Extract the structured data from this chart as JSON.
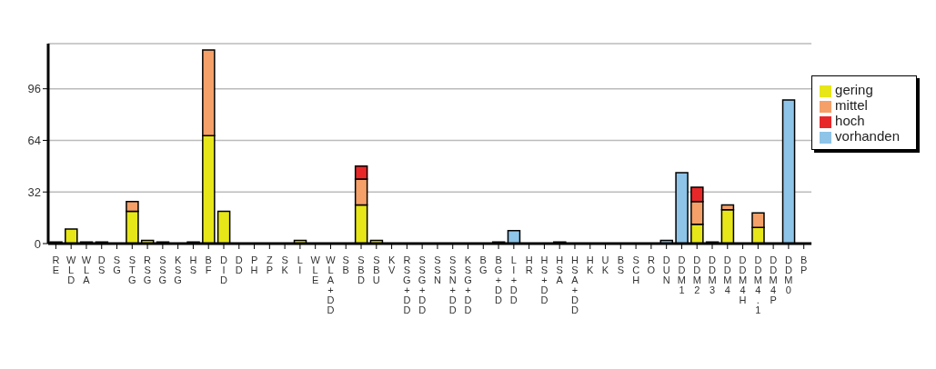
{
  "chart_data": {
    "type": "bar",
    "stacked": true,
    "categories": [
      "RE",
      "WLD",
      "WLA",
      "DS",
      "SG",
      "STG",
      "RSG",
      "SSG",
      "KSG",
      "HS",
      "BF",
      "DID",
      "DD",
      "PH",
      "ZP",
      "SK",
      "LI",
      "WLE",
      "WLA+DD",
      "SB",
      "SBD",
      "SBU",
      "KV",
      "RSG+DD",
      "SSG+DD",
      "SSN",
      "SSN+DD",
      "KSG+DD",
      "BG",
      "BG+DD",
      "LI+DD",
      "HR",
      "HS+DD",
      "HSA",
      "HSA+DD",
      "HK",
      "UK",
      "BS",
      "SCH",
      "RO",
      "DUN",
      "DDM1",
      "DDM2",
      "DDM3",
      "DDM4",
      "DDM4H",
      "DDM4.1",
      "DDM4P",
      "DDM0",
      "BP"
    ],
    "series": [
      {
        "name": "gering",
        "color": "#e6e619",
        "values": [
          1,
          9,
          1,
          1,
          0,
          20,
          2,
          1,
          0,
          1,
          67,
          20,
          0,
          0,
          0,
          0,
          2,
          0,
          0,
          0,
          24,
          2,
          0,
          0,
          0,
          0,
          0,
          0,
          0,
          1,
          0,
          0,
          0,
          1,
          0,
          0,
          0,
          0,
          0,
          0,
          0,
          0,
          12,
          1,
          21,
          0,
          10,
          0,
          0,
          0
        ]
      },
      {
        "name": "mittel",
        "color": "#f4a068",
        "values": [
          0,
          0,
          0,
          0,
          0,
          6,
          0,
          0,
          0,
          0,
          53,
          0,
          0,
          0,
          0,
          0,
          0,
          0,
          0,
          0,
          16,
          0,
          0,
          0,
          0,
          0,
          0,
          0,
          0,
          0,
          0,
          0,
          0,
          0,
          0,
          0,
          0,
          0,
          0,
          0,
          0,
          0,
          14,
          0,
          3,
          0,
          9,
          0,
          0,
          0
        ]
      },
      {
        "name": "hoch",
        "color": "#e82828",
        "values": [
          0,
          0,
          0,
          0,
          0,
          0,
          0,
          0,
          0,
          0,
          0,
          0,
          0,
          0,
          0,
          0,
          0,
          0,
          0,
          0,
          8,
          0,
          0,
          0,
          0,
          0,
          0,
          0,
          0,
          0,
          0,
          0,
          0,
          0,
          0,
          0,
          0,
          0,
          0,
          0,
          0,
          0,
          9,
          0,
          0,
          0,
          0,
          0,
          0,
          0
        ]
      },
      {
        "name": "vorhanden",
        "color": "#8ec4e8",
        "values": [
          0,
          0,
          0,
          0,
          0,
          0,
          0,
          0,
          0,
          0,
          0,
          0,
          0,
          0,
          0,
          0,
          0,
          0,
          0,
          0,
          0,
          0,
          0,
          0,
          0,
          0,
          0,
          0,
          0,
          0,
          8,
          0,
          0,
          0,
          0,
          0,
          0,
          0,
          0,
          0,
          2,
          44,
          0,
          0,
          0,
          0,
          0,
          0,
          89,
          0
        ]
      }
    ],
    "ylim": [
      0,
      124
    ],
    "yticks": [
      0,
      32,
      64,
      96
    ],
    "grid": "y",
    "legend": "top right"
  }
}
